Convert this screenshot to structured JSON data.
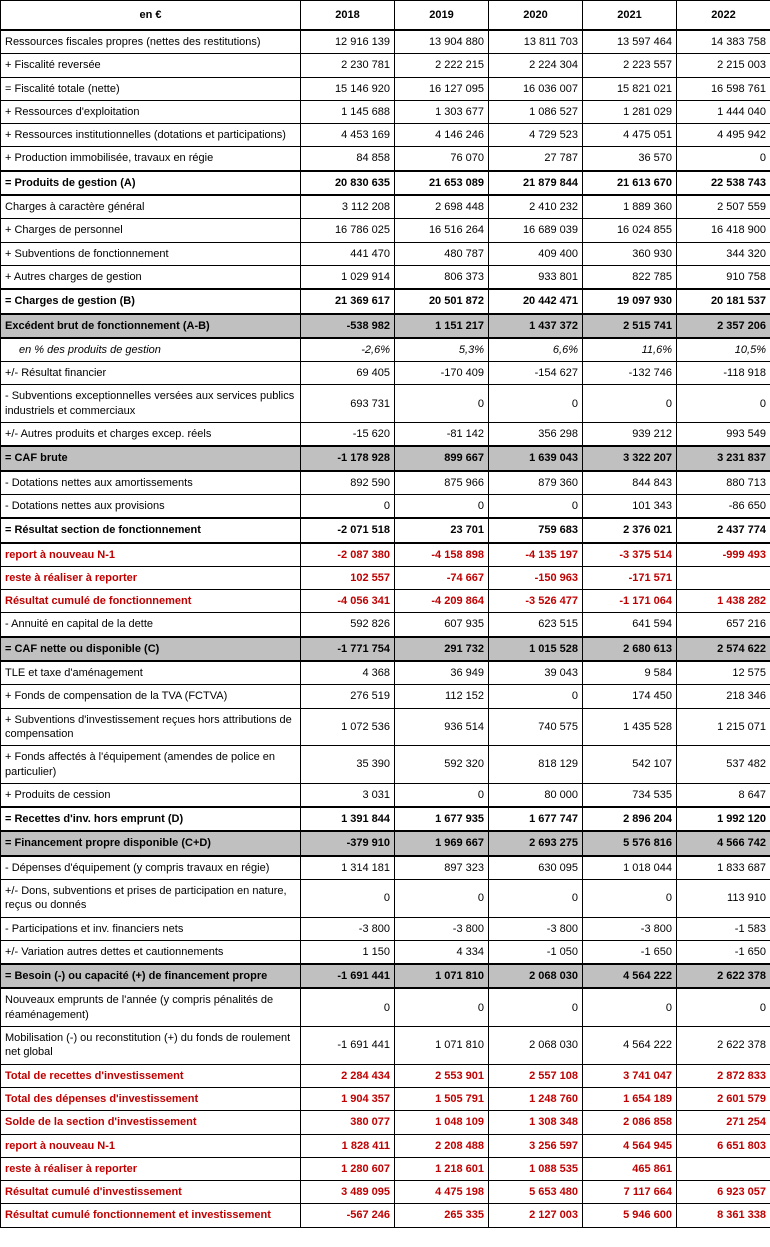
{
  "table": {
    "header": {
      "label": "en €",
      "years": [
        "2018",
        "2019",
        "2020",
        "2021",
        "2022"
      ]
    },
    "colors": {
      "summary_row_bg": "#c0c0c0",
      "highlight_text": "#c00000",
      "border": "#000000"
    },
    "rows": [
      {
        "label": "Ressources fiscales propres (nettes des restitutions)",
        "style": "plain",
        "values": [
          "12 916 139",
          "13 904 880",
          "13 811 703",
          "13 597 464",
          "14 383 758"
        ]
      },
      {
        "label": "+ Fiscalité reversée",
        "style": "plain",
        "values": [
          "2 230 781",
          "2 222 215",
          "2 224 304",
          "2 223 557",
          "2 215 003"
        ]
      },
      {
        "label": "= Fiscalité totale (nette)",
        "style": "plain",
        "values": [
          "15 146 920",
          "16 127 095",
          "16 036 007",
          "15 821 021",
          "16 598 761"
        ]
      },
      {
        "label": "+ Ressources d'exploitation",
        "style": "plain",
        "values": [
          "1 145 688",
          "1 303 677",
          "1 086 527",
          "1 281 029",
          "1 444 040"
        ]
      },
      {
        "label": "+ Ressources institutionnelles (dotations et participations)",
        "style": "plain",
        "values": [
          "4 453 169",
          "4 146 246",
          "4 729 523",
          "4 475 051",
          "4 495 942"
        ]
      },
      {
        "label": "+ Production immobilisée, travaux en régie",
        "style": "plain",
        "values": [
          "84 858",
          "76 070",
          "27 787",
          "36 570",
          "0"
        ]
      },
      {
        "label": "= Produits de gestion (A)",
        "style": "bold",
        "values": [
          "20 830 635",
          "21 653 089",
          "21 879 844",
          "21 613 670",
          "22 538 743"
        ]
      },
      {
        "label": "Charges à caractère général",
        "style": "plain",
        "values": [
          "3 112 208",
          "2 698 448",
          "2 410 232",
          "1 889 360",
          "2 507 559"
        ]
      },
      {
        "label": "+ Charges de personnel",
        "style": "plain",
        "values": [
          "16 786 025",
          "16 516 264",
          "16 689 039",
          "16 024 855",
          "16 418 900"
        ]
      },
      {
        "label": "+ Subventions de fonctionnement",
        "style": "plain",
        "values": [
          "441 470",
          "480 787",
          "409 400",
          "360 930",
          "344 320"
        ]
      },
      {
        "label": "+ Autres charges de gestion",
        "style": "plain",
        "values": [
          "1 029 914",
          "806 373",
          "933 801",
          "822 785",
          "910 758"
        ]
      },
      {
        "label": "= Charges de gestion (B)",
        "style": "bold",
        "values": [
          "21 369 617",
          "20 501 872",
          "20 442 471",
          "19 097 930",
          "20 181 537"
        ]
      },
      {
        "label": "Excédent brut de fonctionnement (A-B)",
        "style": "gray",
        "values": [
          "-538 982",
          "1 151 217",
          "1 437 372",
          "2 515 741",
          "2 357 206"
        ]
      },
      {
        "label": "en % des produits de gestion",
        "style": "italic",
        "values": [
          "-2,6%",
          "5,3%",
          "6,6%",
          "11,6%",
          "10,5%"
        ]
      },
      {
        "label": "+/- Résultat financier",
        "style": "plain",
        "values": [
          "69 405",
          "-170 409",
          "-154 627",
          "-132 746",
          "-118 918"
        ]
      },
      {
        "label": "- Subventions exceptionnelles versées aux services publics industriels et commerciaux",
        "style": "plain",
        "values": [
          "693 731",
          "0",
          "0",
          "0",
          "0"
        ]
      },
      {
        "label": "+/- Autres produits et charges excep. réels",
        "style": "plain",
        "values": [
          "-15 620",
          "-81 142",
          "356 298",
          "939 212",
          "993 549"
        ]
      },
      {
        "label": "= CAF brute",
        "style": "gray",
        "values": [
          "-1 178 928",
          "899 667",
          "1 639 043",
          "3 322 207",
          "3 231 837"
        ]
      },
      {
        "label": "- Dotations nettes aux amortissements",
        "style": "plain",
        "values": [
          "892 590",
          "875 966",
          "879 360",
          "844 843",
          "880 713"
        ]
      },
      {
        "label": "- Dotations nettes aux provisions",
        "style": "plain",
        "values": [
          "0",
          "0",
          "0",
          "101 343",
          "-86 650"
        ]
      },
      {
        "label": "= Résultat section de fonctionnement",
        "style": "bold",
        "values": [
          "-2 071 518",
          "23 701",
          "759 683",
          "2 376 021",
          "2 437 774"
        ]
      },
      {
        "label": "report à nouveau N-1",
        "style": "red",
        "values": [
          "-2 087 380",
          "-4 158 898",
          "-4 135 197",
          "-3 375 514",
          "-999 493"
        ]
      },
      {
        "label": "reste à réaliser à reporter",
        "style": "red",
        "values": [
          "102 557",
          "-74 667",
          "-150 963",
          "-171 571",
          ""
        ]
      },
      {
        "label": "Résultat cumulé de fonctionnement",
        "style": "red",
        "values": [
          "-4 056 341",
          "-4 209 864",
          "-3 526 477",
          "-1 171 064",
          "1 438 282"
        ]
      },
      {
        "label": "- Annuité en capital de la dette",
        "style": "plain",
        "values": [
          "592 826",
          "607 935",
          "623 515",
          "641 594",
          "657 216"
        ]
      },
      {
        "label": "= CAF nette ou disponible (C)",
        "style": "gray",
        "values": [
          "-1 771 754",
          "291 732",
          "1 015 528",
          "2 680 613",
          "2 574 622"
        ]
      },
      {
        "label": "TLE et taxe d'aménagement",
        "style": "plain",
        "values": [
          "4 368",
          "36 949",
          "39 043",
          "9 584",
          "12 575"
        ]
      },
      {
        "label": "+ Fonds de compensation de la TVA (FCTVA)",
        "style": "plain",
        "values": [
          "276 519",
          "112 152",
          "0",
          "174 450",
          "218 346"
        ]
      },
      {
        "label": "+ Subventions d'investissement reçues hors attributions de compensation",
        "style": "plain",
        "values": [
          "1 072 536",
          "936 514",
          "740 575",
          "1 435 528",
          "1 215 071"
        ]
      },
      {
        "label": "+ Fonds affectés à l'équipement (amendes de police en particulier)",
        "style": "plain",
        "values": [
          "35 390",
          "592 320",
          "818 129",
          "542 107",
          "537 482"
        ]
      },
      {
        "label": "+ Produits de cession",
        "style": "plain",
        "values": [
          "3 031",
          "0",
          "80 000",
          "734 535",
          "8 647"
        ]
      },
      {
        "label": "= Recettes d'inv. hors emprunt (D)",
        "style": "bold",
        "values": [
          "1 391 844",
          "1 677 935",
          "1 677 747",
          "2 896 204",
          "1 992 120"
        ]
      },
      {
        "label": "= Financement propre disponible (C+D)",
        "style": "gray",
        "values": [
          "-379 910",
          "1 969 667",
          "2 693 275",
          "5 576 816",
          "4 566 742"
        ]
      },
      {
        "label": "- Dépenses d'équipement (y compris travaux en régie)",
        "style": "plain",
        "values": [
          "1 314 181",
          "897 323",
          "630 095",
          "1 018 044",
          "1 833 687"
        ]
      },
      {
        "label": "+/- Dons, subventions et prises de participation en nature, reçus ou donnés",
        "style": "plain",
        "values": [
          "0",
          "0",
          "0",
          "0",
          "113 910"
        ]
      },
      {
        "label": "- Participations et inv. financiers nets",
        "style": "plain",
        "values": [
          "-3 800",
          "-3 800",
          "-3 800",
          "-3 800",
          "-1 583"
        ]
      },
      {
        "label": "+/- Variation autres dettes et cautionnements",
        "style": "plain",
        "values": [
          "1 150",
          "4 334",
          "-1 050",
          "-1 650",
          "-1 650"
        ]
      },
      {
        "label": "= Besoin (-) ou capacité (+) de financement propre",
        "style": "gray",
        "values": [
          "-1 691 441",
          "1 071 810",
          "2 068 030",
          "4 564 222",
          "2 622 378"
        ]
      },
      {
        "label": "Nouveaux emprunts de l'année (y compris pénalités de réaménagement)",
        "style": "plain",
        "values": [
          "0",
          "0",
          "0",
          "0",
          "0"
        ]
      },
      {
        "label": "Mobilisation (-) ou reconstitution (+) du fonds de roulement net global",
        "style": "plain",
        "values": [
          "-1 691 441",
          "1 071 810",
          "2 068 030",
          "4 564 222",
          "2 622 378"
        ]
      },
      {
        "label": "Total de recettes d'investissement",
        "style": "red",
        "values": [
          "2 284 434",
          "2 553 901",
          "2 557 108",
          "3 741 047",
          "2 872 833"
        ]
      },
      {
        "label": "Total des dépenses d'investissement",
        "style": "red",
        "values": [
          "1 904 357",
          "1 505 791",
          "1 248 760",
          "1 654 189",
          "2 601 579"
        ]
      },
      {
        "label": "Solde de la section d'investissement",
        "style": "red",
        "values": [
          "380 077",
          "1 048 109",
          "1 308 348",
          "2 086 858",
          "271 254"
        ]
      },
      {
        "label": "report à nouveau N-1",
        "style": "red",
        "values": [
          "1 828 411",
          "2 208 488",
          "3 256 597",
          "4 564 945",
          "6 651 803"
        ]
      },
      {
        "label": "reste à réaliser à reporter",
        "style": "red",
        "values": [
          "1 280 607",
          "1 218 601",
          "1 088 535",
          "465 861",
          ""
        ]
      },
      {
        "label": "Résultat cumulé d'investissement",
        "style": "red",
        "values": [
          "3 489 095",
          "4 475 198",
          "5 653 480",
          "7 117 664",
          "6 923 057"
        ]
      },
      {
        "label": "Résultat cumulé fonctionnement et investissement",
        "style": "red",
        "values": [
          "-567 246",
          "265 335",
          "2 127 003",
          "5 946 600",
          "8 361 338"
        ]
      }
    ]
  }
}
